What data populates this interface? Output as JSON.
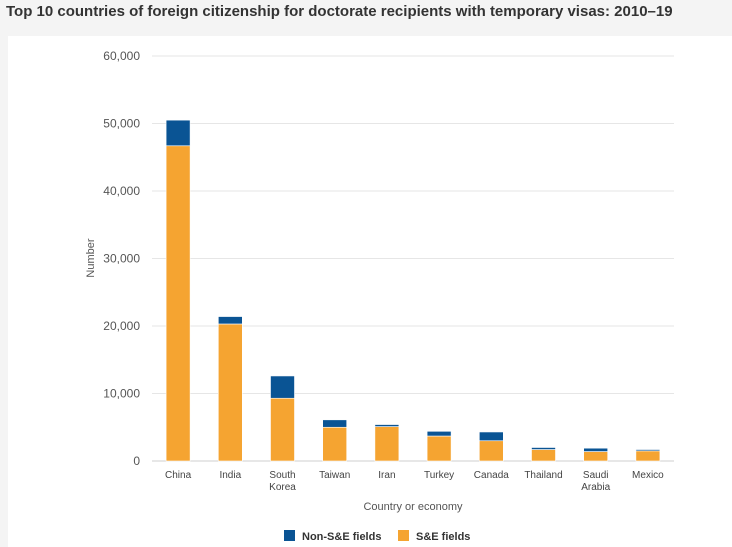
{
  "chart_data": {
    "type": "bar",
    "stacked": true,
    "title": "Top 10 countries of foreign citizenship for doctorate recipients with temporary visas: 2010–19",
    "xlabel": "Country or economy",
    "ylabel": "Number",
    "ylim": [
      0,
      60000
    ],
    "yticks": [
      0,
      10000,
      20000,
      30000,
      40000,
      50000,
      60000
    ],
    "ytick_labels": [
      "0",
      "10,000",
      "20,000",
      "30,000",
      "40,000",
      "50,000",
      "60,000"
    ],
    "categories": [
      [
        "China"
      ],
      [
        "India"
      ],
      [
        "South",
        "Korea"
      ],
      [
        "Taiwan"
      ],
      [
        "Iran"
      ],
      [
        "Turkey"
      ],
      [
        "Canada"
      ],
      [
        "Thailand"
      ],
      [
        "Saudi",
        "Arabia"
      ],
      [
        "Mexico"
      ]
    ],
    "series": [
      {
        "name": "S&E fields",
        "color": "#f5a431",
        "values": [
          46700,
          20300,
          9300,
          5000,
          5100,
          3700,
          3000,
          1700,
          1400,
          1500
        ]
      },
      {
        "name": "Non-S&E fields",
        "color": "#0a5494",
        "values": [
          3800,
          1100,
          3300,
          1100,
          300,
          700,
          1300,
          300,
          500,
          200
        ]
      }
    ],
    "legend": {
      "placement": "bottom-center",
      "order": [
        "Non-S&E fields",
        "S&E fields"
      ]
    },
    "grid": true
  }
}
